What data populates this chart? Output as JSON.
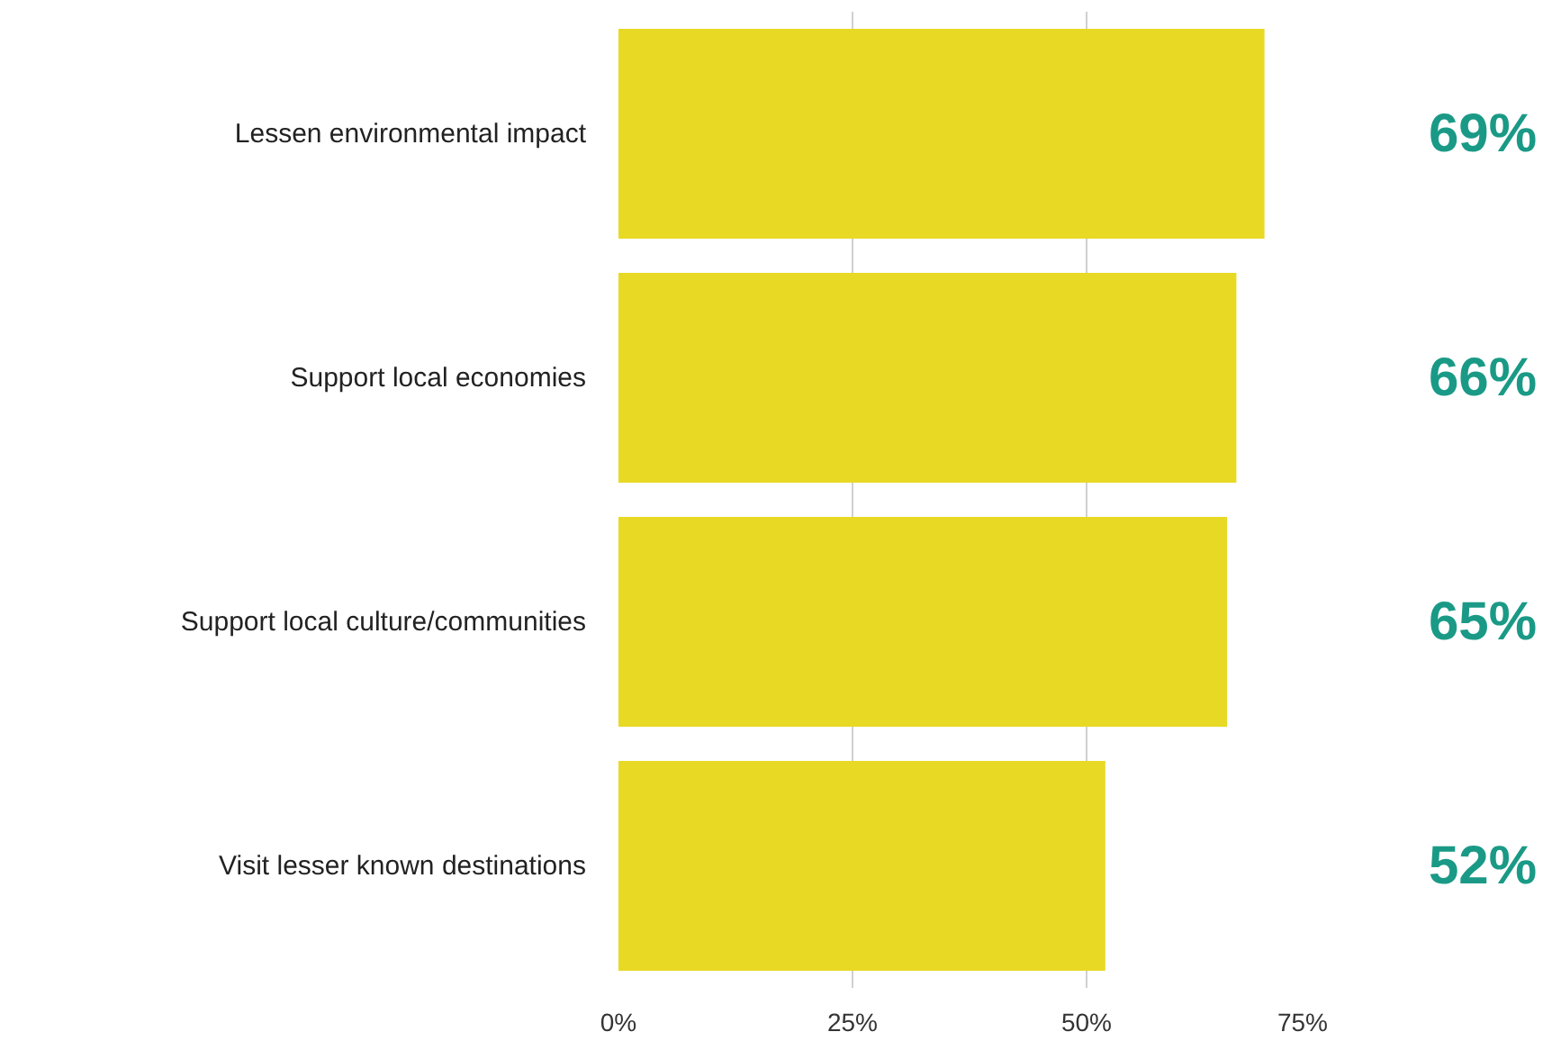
{
  "chart_data": {
    "type": "bar",
    "orientation": "horizontal",
    "categories": [
      "Lessen environmental impact",
      "Support local economies",
      "Support local culture/communities",
      "Visit lesser known destinations"
    ],
    "values": [
      69,
      66,
      65,
      52
    ],
    "value_labels": [
      "69%",
      "66%",
      "65%",
      "52%"
    ],
    "color": "#e8d925",
    "xlim": [
      0,
      75
    ],
    "xticks": [
      {
        "value": 0,
        "label": "0%"
      },
      {
        "value": 25,
        "label": "25%"
      },
      {
        "value": 50,
        "label": "50%"
      },
      {
        "value": 75,
        "label": "75%"
      }
    ],
    "grid": "x"
  }
}
